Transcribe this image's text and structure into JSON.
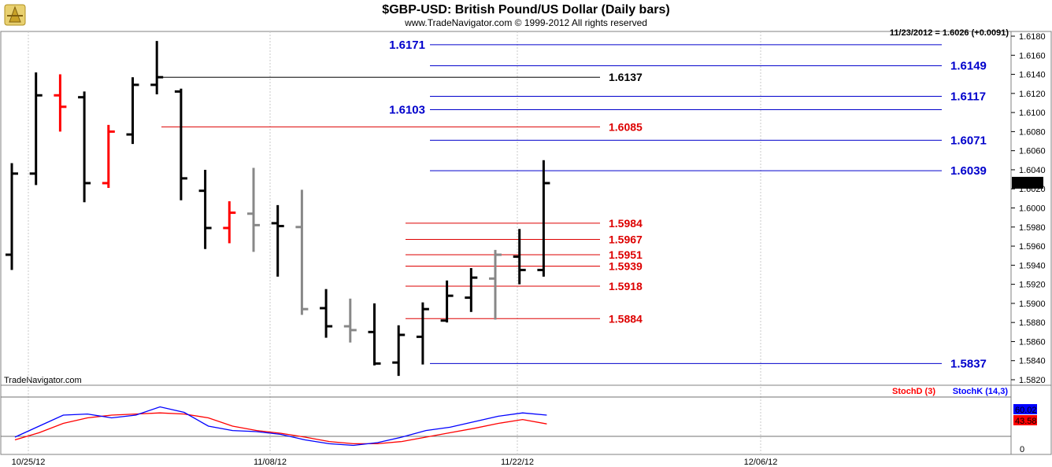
{
  "header": {
    "title": "$GBP-USD:  British Pound/US Dollar  (Daily bars)",
    "copyright": "www.TradeNavigator.com © 1999-2012 All rights reserved",
    "last_quote": "11/23/2012 = 1.6026 (+0.0091)",
    "watermark": "TradeNavigator.com"
  },
  "colors": {
    "up": "#000000",
    "down_light": "#888888",
    "red": "#ff0000",
    "blue_level": "#0000cc",
    "red_level": "#dd0000",
    "stoch_k": "#0000ff",
    "stoch_d": "#ff0000"
  },
  "chart_data": {
    "type": "ohlc",
    "price_axis": {
      "min": 1.582,
      "max": 1.618,
      "step": 0.002,
      "tick_labels": [
        "1.6180",
        "1.6160",
        "1.6140",
        "1.6120",
        "1.6100",
        "1.6080",
        "1.6060",
        "1.6040",
        "1.6020",
        "1.6000",
        "1.5980",
        "1.5960",
        "1.5940",
        "1.5920",
        "1.5900",
        "1.5880",
        "1.5860",
        "1.5840",
        "1.5820"
      ],
      "last_price_label": "1.6026"
    },
    "date_labels": [
      "10/25/12",
      "11/08/12",
      "11/22/12",
      "12/06/12"
    ],
    "bars": [
      {
        "date": "10/23/12",
        "o": 1.5951,
        "h": 1.6047,
        "l": 1.5935,
        "c": 1.6036,
        "color": "black"
      },
      {
        "date": "10/24/12",
        "o": 1.6036,
        "h": 1.6142,
        "l": 1.6024,
        "c": 1.6118,
        "color": "black"
      },
      {
        "date": "10/25/12",
        "o": 1.6118,
        "h": 1.614,
        "l": 1.608,
        "c": 1.6106,
        "color": "red"
      },
      {
        "date": "10/26/12",
        "o": 1.6116,
        "h": 1.6122,
        "l": 1.6006,
        "c": 1.6026,
        "color": "black"
      },
      {
        "date": "10/29/12",
        "o": 1.6026,
        "h": 1.6087,
        "l": 1.6021,
        "c": 1.608,
        "color": "red"
      },
      {
        "date": "10/30/12",
        "o": 1.6077,
        "h": 1.6137,
        "l": 1.6067,
        "c": 1.6129,
        "color": "black"
      },
      {
        "date": "10/31/12",
        "o": 1.6129,
        "h": 1.6175,
        "l": 1.6119,
        "c": 1.6137,
        "color": "black"
      },
      {
        "date": "11/01/12",
        "o": 1.6122,
        "h": 1.6125,
        "l": 1.6008,
        "c": 1.6031,
        "color": "black"
      },
      {
        "date": "11/02/12",
        "o": 1.6018,
        "h": 1.604,
        "l": 1.5957,
        "c": 1.5979,
        "color": "black"
      },
      {
        "date": "11/05/12",
        "o": 1.5979,
        "h": 1.6007,
        "l": 1.5963,
        "c": 1.5995,
        "color": "red"
      },
      {
        "date": "11/06/12",
        "o": 1.5994,
        "h": 1.6042,
        "l": 1.5954,
        "c": 1.5982,
        "color": "gray"
      },
      {
        "date": "11/07/12",
        "o": 1.5984,
        "h": 1.6003,
        "l": 1.5928,
        "c": 1.5981,
        "color": "black"
      },
      {
        "date": "11/08/12",
        "o": 1.598,
        "h": 1.6019,
        "l": 1.5888,
        "c": 1.5894,
        "color": "gray"
      },
      {
        "date": "11/09/12",
        "o": 1.5895,
        "h": 1.5915,
        "l": 1.5864,
        "c": 1.5876,
        "color": "black"
      },
      {
        "date": "11/12/12",
        "o": 1.5876,
        "h": 1.5905,
        "l": 1.5859,
        "c": 1.5872,
        "color": "gray"
      },
      {
        "date": "11/13/12",
        "o": 1.587,
        "h": 1.59,
        "l": 1.5835,
        "c": 1.5837,
        "color": "black"
      },
      {
        "date": "11/14/12",
        "o": 1.5838,
        "h": 1.5877,
        "l": 1.5824,
        "c": 1.5867,
        "color": "black"
      },
      {
        "date": "11/15/12",
        "o": 1.5865,
        "h": 1.5901,
        "l": 1.5836,
        "c": 1.5894,
        "color": "black"
      },
      {
        "date": "11/16/12",
        "o": 1.5882,
        "h": 1.5924,
        "l": 1.588,
        "c": 1.5908,
        "color": "black"
      },
      {
        "date": "11/19/12",
        "o": 1.5906,
        "h": 1.5937,
        "l": 1.5891,
        "c": 1.5927,
        "color": "black"
      },
      {
        "date": "11/20/12",
        "o": 1.5926,
        "h": 1.5956,
        "l": 1.5883,
        "c": 1.5951,
        "color": "gray"
      },
      {
        "date": "11/21/12",
        "o": 1.5949,
        "h": 1.5978,
        "l": 1.592,
        "c": 1.5935,
        "color": "black"
      },
      {
        "date": "11/22/12",
        "o": 1.5935,
        "h": 1.605,
        "l": 1.5928,
        "c": 1.6026,
        "color": "black"
      }
    ],
    "levels": [
      {
        "label": "1.6171",
        "value": 1.6171,
        "color": "blue",
        "x0": 5,
        "x1": 15,
        "text_side": "left"
      },
      {
        "label": "1.6149",
        "value": 1.6149,
        "color": "blue",
        "x0": 8,
        "x1": 21,
        "text_side": "right"
      },
      {
        "label": "1.6137",
        "value": 1.6137,
        "color": "black",
        "x0": 6,
        "x1": 13,
        "text_side": "right"
      },
      {
        "label": "1.6117",
        "value": 1.6117,
        "color": "blue",
        "x0": 8,
        "x1": 21,
        "text_side": "right"
      },
      {
        "label": "1.6103",
        "value": 1.6103,
        "color": "blue",
        "x0": 4,
        "x1": 15,
        "text_side": "left"
      },
      {
        "label": "1.6085",
        "value": 1.6085,
        "color": "red",
        "x0": 6,
        "x1": 13,
        "text_side": "right"
      },
      {
        "label": "1.6071",
        "value": 1.6071,
        "color": "blue",
        "x0": 8,
        "x1": 21,
        "text_side": "right"
      },
      {
        "label": "1.6039",
        "value": 1.6039,
        "color": "blue",
        "x0": 8,
        "x1": 21,
        "text_side": "right"
      },
      {
        "label": "1.5984",
        "value": 1.5984,
        "color": "red",
        "x0": 7,
        "x1": 13,
        "text_side": "right"
      },
      {
        "label": "1.5967",
        "value": 1.5967,
        "color": "red",
        "x0": 7,
        "x1": 13,
        "text_side": "right"
      },
      {
        "label": "1.5951",
        "value": 1.5951,
        "color": "red",
        "x0": 7,
        "x1": 13,
        "text_side": "right"
      },
      {
        "label": "1.5939",
        "value": 1.5939,
        "color": "red",
        "x0": 7,
        "x1": 13,
        "text_side": "right"
      },
      {
        "label": "1.5918",
        "value": 1.5918,
        "color": "red",
        "x0": 7,
        "x1": 13,
        "text_side": "right"
      },
      {
        "label": "1.5884",
        "value": 1.5884,
        "color": "red",
        "x0": 7,
        "x1": 13,
        "text_side": "right"
      },
      {
        "label": "1.5837",
        "value": 1.5837,
        "color": "blue",
        "x0": 8,
        "x1": 21,
        "text_side": "right"
      }
    ],
    "stochastic": {
      "label_d": "StochD (3)",
      "label_k": "StochK (14,3)",
      "axis_zero_label": "0",
      "k_label": "60.02",
      "d_label": "43.58",
      "k_values": [
        20,
        40,
        60,
        62,
        55,
        60,
        75,
        65,
        40,
        32,
        30,
        25,
        15,
        8,
        5,
        10,
        20,
        32,
        38,
        48,
        58,
        64,
        60
      ],
      "d_values": [
        15,
        28,
        45,
        55,
        60,
        62,
        64,
        62,
        55,
        40,
        32,
        27,
        20,
        12,
        8,
        8,
        12,
        20,
        28,
        36,
        45,
        52,
        44
      ]
    }
  }
}
